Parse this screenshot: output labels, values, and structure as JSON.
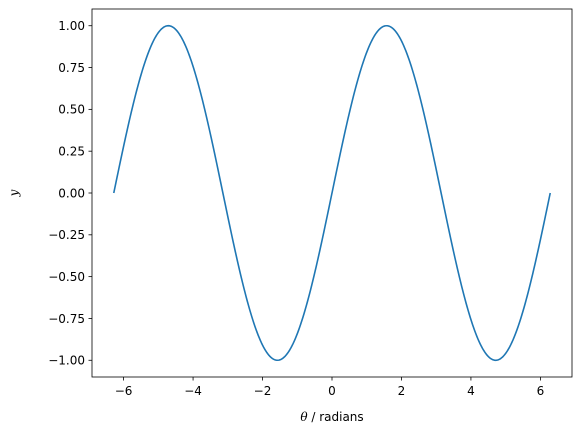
{
  "chart_data": {
    "type": "line",
    "function": "sin",
    "x_range": [
      -6.283185307179586,
      6.283185307179586
    ],
    "samples": 400,
    "xlabel_symbol": "θ",
    "xlabel_rest": " / radians",
    "ylabel": "y",
    "xlim": [
      -6.91,
      6.91
    ],
    "ylim": [
      -1.1,
      1.1
    ],
    "xticks": [
      -6,
      -4,
      -2,
      0,
      2,
      4,
      6
    ],
    "xtick_labels": [
      "−6",
      "−4",
      "−2",
      "0",
      "2",
      "4",
      "6"
    ],
    "yticks": [
      -1.0,
      -0.75,
      -0.5,
      -0.25,
      0.0,
      0.25,
      0.5,
      0.75,
      1.0
    ],
    "ytick_labels": [
      "−1.00",
      "−0.75",
      "−0.50",
      "−0.25",
      "0.00",
      "0.25",
      "0.50",
      "0.75",
      "1.00"
    ],
    "grid": false,
    "series": [
      {
        "color": "#1f77b4"
      }
    ]
  }
}
